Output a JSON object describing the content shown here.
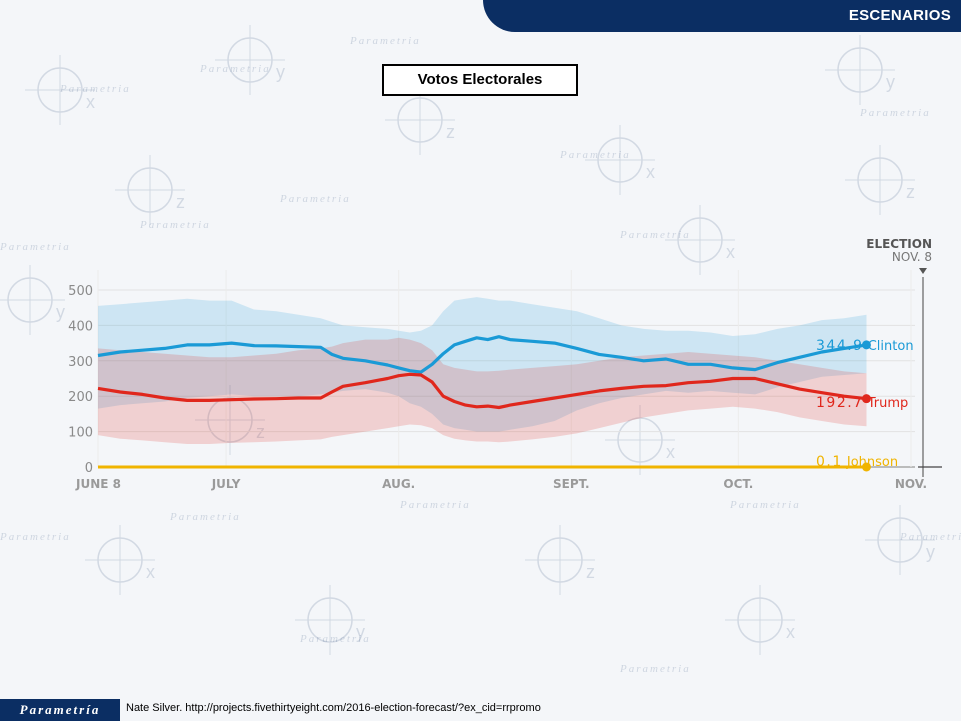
{
  "header": {
    "section_label": "ESCENARIOS"
  },
  "title": "Votos Electorales",
  "footer": {
    "logo_text": "Parametría",
    "source": "Nate Silver. http://projects.fivethirtyeight.com/2016-election-forecast/?ex_cid=rrpromo"
  },
  "watermark": {
    "brand": "Parametria",
    "letters": [
      "x",
      "y",
      "z"
    ]
  },
  "chart_data": {
    "type": "line",
    "x_tick_labels": [
      "JUNE 8",
      "JULY",
      "AUG.",
      "SEPT.",
      "OCT.",
      "NOV."
    ],
    "x_tick_days": [
      0,
      23,
      54,
      85,
      115,
      146
    ],
    "y_ticks": [
      0,
      100,
      200,
      300,
      400,
      500
    ],
    "ylim": [
      0,
      500
    ],
    "xlim_days": [
      0,
      146
    ],
    "grid": true,
    "election_marker": {
      "line1": "ELECTION",
      "line2": "NOV. 8"
    },
    "colors": {
      "clinton": "#1a9ad6",
      "trump": "#e0271c",
      "johnson": "#f0b400"
    },
    "series": [
      {
        "name": "Clinton",
        "final_label": "344.9",
        "final_value": 344.9,
        "color": "#1a9ad6",
        "x": [
          0,
          4,
          8,
          12,
          16,
          20,
          24,
          28,
          32,
          36,
          40,
          42,
          44,
          48,
          52,
          54,
          56,
          58,
          60,
          62,
          64,
          66,
          68,
          70,
          72,
          74,
          78,
          82,
          86,
          90,
          94,
          98,
          102,
          106,
          110,
          114,
          118,
          122,
          126,
          130,
          134,
          138
        ],
        "values": [
          315,
          325,
          330,
          335,
          345,
          345,
          350,
          343,
          342,
          340,
          338,
          318,
          307,
          300,
          288,
          280,
          272,
          268,
          290,
          320,
          345,
          355,
          365,
          360,
          368,
          360,
          355,
          350,
          335,
          318,
          310,
          300,
          305,
          290,
          290,
          280,
          275,
          295,
          310,
          325,
          335,
          345
        ],
        "band_high": [
          455,
          460,
          465,
          470,
          475,
          470,
          470,
          445,
          440,
          430,
          420,
          410,
          400,
          395,
          390,
          385,
          380,
          385,
          400,
          440,
          470,
          475,
          480,
          475,
          470,
          470,
          460,
          450,
          440,
          420,
          400,
          390,
          385,
          385,
          380,
          370,
          375,
          390,
          400,
          415,
          420,
          430
        ],
        "band_low": [
          165,
          175,
          180,
          185,
          195,
          200,
          205,
          200,
          200,
          200,
          205,
          210,
          215,
          220,
          210,
          200,
          180,
          170,
          150,
          120,
          110,
          105,
          100,
          100,
          100,
          105,
          115,
          130,
          160,
          180,
          195,
          205,
          215,
          210,
          215,
          210,
          205,
          225,
          240,
          255,
          260,
          265
        ]
      },
      {
        "name": "Trump",
        "final_label": "192.7",
        "final_value": 192.7,
        "color": "#e0271c",
        "x": [
          0,
          4,
          8,
          12,
          16,
          20,
          24,
          28,
          32,
          36,
          40,
          42,
          44,
          48,
          52,
          54,
          56,
          58,
          60,
          62,
          64,
          66,
          68,
          70,
          72,
          74,
          78,
          82,
          86,
          90,
          94,
          98,
          102,
          106,
          110,
          114,
          118,
          122,
          126,
          130,
          134,
          138
        ],
        "values": [
          222,
          212,
          205,
          195,
          188,
          188,
          190,
          192,
          193,
          195,
          195,
          212,
          228,
          238,
          250,
          258,
          262,
          260,
          240,
          200,
          185,
          175,
          170,
          172,
          168,
          175,
          185,
          195,
          205,
          215,
          222,
          228,
          230,
          238,
          242,
          250,
          250,
          235,
          220,
          210,
          200,
          193
        ],
        "band_high": [
          335,
          330,
          325,
          320,
          315,
          310,
          310,
          315,
          320,
          330,
          335,
          340,
          350,
          360,
          360,
          365,
          360,
          350,
          330,
          290,
          280,
          275,
          270,
          270,
          272,
          275,
          280,
          285,
          290,
          300,
          310,
          315,
          320,
          325,
          320,
          315,
          310,
          300,
          290,
          280,
          270,
          265
        ],
        "band_low": [
          90,
          80,
          75,
          70,
          65,
          65,
          68,
          70,
          72,
          75,
          78,
          85,
          90,
          100,
          110,
          115,
          120,
          118,
          110,
          90,
          80,
          75,
          72,
          72,
          70,
          72,
          78,
          85,
          95,
          110,
          125,
          140,
          150,
          160,
          165,
          170,
          165,
          155,
          140,
          130,
          120,
          115
        ]
      },
      {
        "name": "Johnson",
        "final_label": "0.1",
        "final_value": 0.1,
        "color": "#f0b400",
        "x": [
          0,
          138
        ],
        "values": [
          0.1,
          0.1
        ]
      }
    ]
  }
}
